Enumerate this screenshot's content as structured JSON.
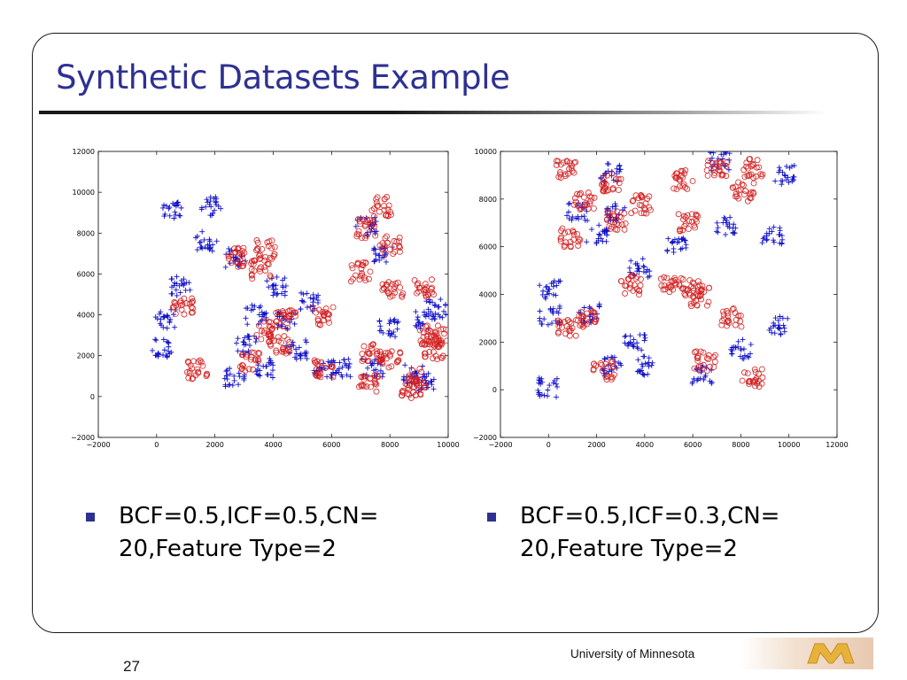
{
  "slide": {
    "title": "Synthetic Datasets Example",
    "page_number": "27",
    "footer": "University of Minnesota",
    "accent_color": "#2e3192",
    "logo": "university-of-minnesota-m-logo"
  },
  "bullets": [
    {
      "line1": "BCF=0.5,ICF=0.5,CN=",
      "line2": "20,Feature Type=2"
    },
    {
      "line1": "BCF=0.5,ICF=0.3,CN=",
      "line2": "20,Feature Type=2"
    }
  ],
  "chart_data": [
    {
      "type": "scatter",
      "title": "",
      "xlabel": "",
      "ylabel": "",
      "xlim": [
        -2000,
        10000
      ],
      "ylim": [
        -2000,
        12000
      ],
      "xticks": [
        -2000,
        0,
        2000,
        4000,
        6000,
        8000,
        10000
      ],
      "yticks": [
        -2000,
        0,
        2000,
        4000,
        6000,
        8000,
        10000,
        12000
      ],
      "grid": false,
      "series": [
        {
          "marker": "plus",
          "color": "#1010c8",
          "clusters": [
            [
              500,
              9200
            ],
            [
              1900,
              9300
            ],
            [
              1700,
              7600
            ],
            [
              800,
              5400
            ],
            [
              300,
              3800
            ],
            [
              200,
              2400
            ],
            [
              2700,
              6800
            ],
            [
              3400,
              4000
            ],
            [
              4500,
              3700
            ],
            [
              4100,
              5400
            ],
            [
              5200,
              4600
            ],
            [
              3100,
              2500
            ],
            [
              3700,
              1400
            ],
            [
              4800,
              2300
            ],
            [
              5700,
              1300
            ],
            [
              7200,
              8300
            ],
            [
              7800,
              7000
            ],
            [
              8000,
              3300
            ],
            [
              9200,
              3700
            ],
            [
              9600,
              4300
            ],
            [
              7400,
              1400
            ],
            [
              8800,
              1100
            ],
            [
              9200,
              700
            ],
            [
              2700,
              900
            ],
            [
              6300,
              1400
            ]
          ]
        },
        {
          "marker": "circle",
          "color": "#d42020",
          "clusters": [
            [
              900,
              4400
            ],
            [
              1400,
              1300
            ],
            [
              2700,
              6800
            ],
            [
              3600,
              6200
            ],
            [
              3700,
              7200
            ],
            [
              4400,
              3800
            ],
            [
              3700,
              3200
            ],
            [
              4200,
              2500
            ],
            [
              5700,
              3900
            ],
            [
              5700,
              1300
            ],
            [
              3200,
              1700
            ],
            [
              7700,
              9300
            ],
            [
              7200,
              8200
            ],
            [
              8000,
              7400
            ],
            [
              7000,
              6100
            ],
            [
              8100,
              5300
            ],
            [
              9200,
              5300
            ],
            [
              7400,
              2100
            ],
            [
              8000,
              1900
            ],
            [
              9400,
              2900
            ],
            [
              7300,
              600
            ],
            [
              8700,
              400
            ],
            [
              9000,
              900
            ],
            [
              9600,
              3000
            ],
            [
              9500,
              2300
            ]
          ]
        }
      ]
    },
    {
      "type": "scatter",
      "title": "",
      "xlabel": "",
      "ylabel": "",
      "xlim": [
        -2000,
        12000
      ],
      "ylim": [
        -2000,
        10000
      ],
      "xticks": [
        -2000,
        0,
        2000,
        4000,
        6000,
        8000,
        10000,
        12000
      ],
      "yticks": [
        -2000,
        0,
        2000,
        4000,
        6000,
        8000,
        10000
      ],
      "grid": false,
      "series": [
        {
          "marker": "plus",
          "color": "#1010c8",
          "clusters": [
            [
              2600,
              9100
            ],
            [
              7100,
              9600
            ],
            [
              9800,
              9000
            ],
            [
              1200,
              7500
            ],
            [
              2800,
              7500
            ],
            [
              2000,
              6500
            ],
            [
              5300,
              6000
            ],
            [
              7400,
              6900
            ],
            [
              9300,
              6500
            ],
            [
              3800,
              5100
            ],
            [
              50,
              4200
            ],
            [
              50,
              3100
            ],
            [
              1700,
              3200
            ],
            [
              9500,
              2700
            ],
            [
              3600,
              1900
            ],
            [
              8000,
              1700
            ],
            [
              2600,
              1000
            ],
            [
              3900,
              1000
            ],
            [
              6400,
              600
            ],
            [
              0,
              100
            ]
          ]
        },
        {
          "marker": "circle",
          "color": "#d42020",
          "clusters": [
            [
              700,
              9300
            ],
            [
              2600,
              8700
            ],
            [
              5600,
              8800
            ],
            [
              7000,
              9300
            ],
            [
              8500,
              9300
            ],
            [
              1500,
              7900
            ],
            [
              2800,
              7100
            ],
            [
              3800,
              7800
            ],
            [
              8100,
              8300
            ],
            [
              900,
              6400
            ],
            [
              5800,
              7000
            ],
            [
              3400,
              4400
            ],
            [
              5100,
              4500
            ],
            [
              6000,
              4300
            ],
            [
              6300,
              3900
            ],
            [
              7600,
              3000
            ],
            [
              1700,
              3000
            ],
            [
              800,
              2600
            ],
            [
              6500,
              1200
            ],
            [
              2300,
              800
            ],
            [
              8500,
              500
            ]
          ]
        }
      ]
    }
  ]
}
